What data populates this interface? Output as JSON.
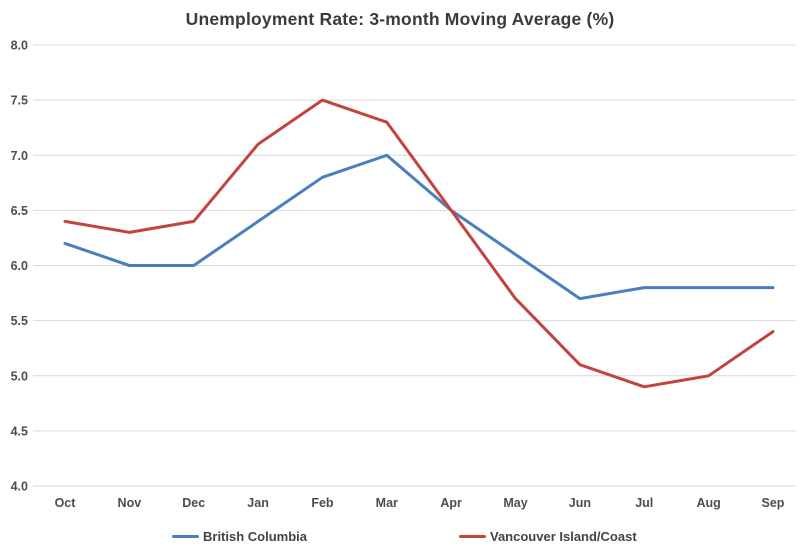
{
  "title": "Unemployment Rate: 3-month Moving Average (%)",
  "chart_data": {
    "type": "line",
    "title": "Unemployment Rate: 3-month Moving Average (%)",
    "categories": [
      "Oct",
      "Nov",
      "Dec",
      "Jan",
      "Feb",
      "Mar",
      "Apr",
      "May",
      "Jun",
      "Jul",
      "Aug",
      "Sep"
    ],
    "series": [
      {
        "name": "British Columbia",
        "color": "#4A7EBE",
        "values": [
          6.2,
          6.0,
          6.0,
          6.4,
          6.8,
          7.0,
          6.5,
          6.1,
          5.7,
          5.8,
          5.8,
          5.8
        ]
      },
      {
        "name": "Vancouver Island/Coast",
        "color": "#C2443E",
        "values": [
          6.4,
          6.3,
          6.4,
          7.1,
          7.5,
          7.3,
          6.5,
          5.7,
          5.1,
          4.9,
          5.0,
          5.4
        ]
      }
    ],
    "xlabel": "",
    "ylabel": "",
    "ylim": [
      4.0,
      8.0
    ],
    "ytick_step": 0.5,
    "ytick_labels": [
      "4.0",
      "4.5",
      "5.0",
      "5.5",
      "6.0",
      "6.5",
      "7.0",
      "7.5",
      "8.0"
    ],
    "grid": "horizontal",
    "grid_color": "#d9d9d9",
    "tick_label_color": "#4d4d4d",
    "legend_position": "bottom",
    "line_width": 3
  }
}
